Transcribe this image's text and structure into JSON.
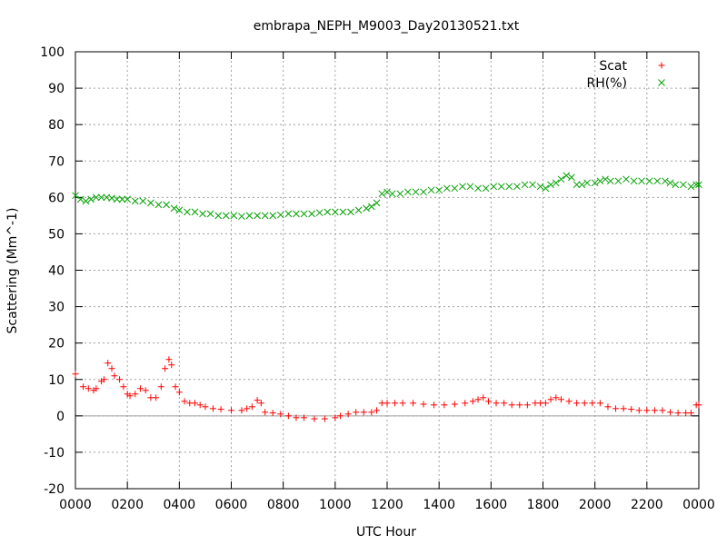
{
  "chart_data": {
    "type": "scatter",
    "title": "embrapa_NEPH_M9003_Day20130521.txt",
    "xlabel": "UTC Hour",
    "ylabel": "Scattering (Mm^-1)",
    "xlim": [
      0,
      24
    ],
    "ylim": [
      -20,
      100
    ],
    "x_ticks": [
      0,
      2,
      4,
      6,
      8,
      10,
      12,
      14,
      16,
      18,
      20,
      22,
      24
    ],
    "x_tick_labels": [
      "0000",
      "0200",
      "0400",
      "0600",
      "0800",
      "1000",
      "1200",
      "1400",
      "1600",
      "1800",
      "2000",
      "2200",
      "0000"
    ],
    "y_ticks": [
      -20,
      -10,
      0,
      10,
      20,
      30,
      40,
      50,
      60,
      70,
      80,
      90,
      100
    ],
    "grid": true,
    "legend_position": "top-right",
    "series": [
      {
        "name": "Scat",
        "color": "#ff0000",
        "marker": "plus",
        "points": [
          [
            0.0,
            11.5
          ],
          [
            0.3,
            8.0
          ],
          [
            0.5,
            7.5
          ],
          [
            0.7,
            7.0
          ],
          [
            0.8,
            7.5
          ],
          [
            1.0,
            9.5
          ],
          [
            1.1,
            10.0
          ],
          [
            1.25,
            14.5
          ],
          [
            1.4,
            13.0
          ],
          [
            1.5,
            11.0
          ],
          [
            1.7,
            10.0
          ],
          [
            1.85,
            8.0
          ],
          [
            2.0,
            6.0
          ],
          [
            2.1,
            5.5
          ],
          [
            2.3,
            6.0
          ],
          [
            2.5,
            7.5
          ],
          [
            2.7,
            7.0
          ],
          [
            2.9,
            5.0
          ],
          [
            3.1,
            5.0
          ],
          [
            3.3,
            8.0
          ],
          [
            3.45,
            13.0
          ],
          [
            3.6,
            15.5
          ],
          [
            3.7,
            14.0
          ],
          [
            3.85,
            8.0
          ],
          [
            4.0,
            6.5
          ],
          [
            4.2,
            4.0
          ],
          [
            4.4,
            3.5
          ],
          [
            4.6,
            3.5
          ],
          [
            4.8,
            3.0
          ],
          [
            5.0,
            2.5
          ],
          [
            5.3,
            2.0
          ],
          [
            5.6,
            1.8
          ],
          [
            6.0,
            1.5
          ],
          [
            6.4,
            1.5
          ],
          [
            6.6,
            2.0
          ],
          [
            6.8,
            2.5
          ],
          [
            7.0,
            4.3
          ],
          [
            7.15,
            3.5
          ],
          [
            7.3,
            1.0
          ],
          [
            7.6,
            0.8
          ],
          [
            7.9,
            0.5
          ],
          [
            8.2,
            0.0
          ],
          [
            8.5,
            -0.5
          ],
          [
            8.8,
            -0.5
          ],
          [
            9.2,
            -0.8
          ],
          [
            9.6,
            -0.8
          ],
          [
            10.0,
            -0.5
          ],
          [
            10.2,
            0.0
          ],
          [
            10.5,
            0.5
          ],
          [
            10.8,
            1.0
          ],
          [
            11.1,
            1.0
          ],
          [
            11.4,
            1.0
          ],
          [
            11.6,
            1.5
          ],
          [
            11.8,
            3.5
          ],
          [
            12.0,
            3.5
          ],
          [
            12.3,
            3.5
          ],
          [
            12.6,
            3.5
          ],
          [
            13.0,
            3.5
          ],
          [
            13.4,
            3.2
          ],
          [
            13.8,
            3.0
          ],
          [
            14.2,
            3.0
          ],
          [
            14.6,
            3.2
          ],
          [
            15.0,
            3.5
          ],
          [
            15.3,
            4.0
          ],
          [
            15.5,
            4.5
          ],
          [
            15.7,
            5.0
          ],
          [
            15.9,
            4.0
          ],
          [
            16.2,
            3.5
          ],
          [
            16.5,
            3.5
          ],
          [
            16.8,
            3.0
          ],
          [
            17.1,
            3.0
          ],
          [
            17.4,
            3.0
          ],
          [
            17.7,
            3.5
          ],
          [
            17.9,
            3.5
          ],
          [
            18.1,
            3.5
          ],
          [
            18.3,
            4.5
          ],
          [
            18.5,
            5.0
          ],
          [
            18.7,
            4.5
          ],
          [
            19.0,
            4.0
          ],
          [
            19.3,
            3.5
          ],
          [
            19.6,
            3.5
          ],
          [
            19.9,
            3.5
          ],
          [
            20.2,
            3.5
          ],
          [
            20.5,
            2.5
          ],
          [
            20.8,
            2.0
          ],
          [
            21.1,
            2.0
          ],
          [
            21.4,
            1.8
          ],
          [
            21.7,
            1.5
          ],
          [
            22.0,
            1.5
          ],
          [
            22.3,
            1.5
          ],
          [
            22.6,
            1.5
          ],
          [
            22.9,
            1.0
          ],
          [
            23.2,
            0.8
          ],
          [
            23.5,
            0.8
          ],
          [
            23.7,
            0.8
          ],
          [
            23.9,
            3.0
          ],
          [
            24.0,
            3.0
          ]
        ]
      },
      {
        "name": "RH(%)",
        "color": "#00a000",
        "marker": "cross",
        "points": [
          [
            0.0,
            60.5
          ],
          [
            0.2,
            59.5
          ],
          [
            0.4,
            59.0
          ],
          [
            0.6,
            59.5
          ],
          [
            0.8,
            60.0
          ],
          [
            1.0,
            60.0
          ],
          [
            1.2,
            60.0
          ],
          [
            1.4,
            59.8
          ],
          [
            1.6,
            59.5
          ],
          [
            1.8,
            59.5
          ],
          [
            2.0,
            59.5
          ],
          [
            2.3,
            59.0
          ],
          [
            2.6,
            59.0
          ],
          [
            2.9,
            58.5
          ],
          [
            3.2,
            58.0
          ],
          [
            3.5,
            58.0
          ],
          [
            3.8,
            57.0
          ],
          [
            4.0,
            56.5
          ],
          [
            4.3,
            56.0
          ],
          [
            4.6,
            56.0
          ],
          [
            4.9,
            55.5
          ],
          [
            5.2,
            55.5
          ],
          [
            5.5,
            55.0
          ],
          [
            5.8,
            55.0
          ],
          [
            6.1,
            55.0
          ],
          [
            6.4,
            54.8
          ],
          [
            6.7,
            55.0
          ],
          [
            7.0,
            55.0
          ],
          [
            7.3,
            55.0
          ],
          [
            7.6,
            55.0
          ],
          [
            7.9,
            55.2
          ],
          [
            8.2,
            55.5
          ],
          [
            8.5,
            55.5
          ],
          [
            8.8,
            55.5
          ],
          [
            9.1,
            55.5
          ],
          [
            9.4,
            55.8
          ],
          [
            9.7,
            56.0
          ],
          [
            10.0,
            56.0
          ],
          [
            10.3,
            56.0
          ],
          [
            10.6,
            56.0
          ],
          [
            10.9,
            56.5
          ],
          [
            11.2,
            57.0
          ],
          [
            11.4,
            57.5
          ],
          [
            11.6,
            58.5
          ],
          [
            11.8,
            61.0
          ],
          [
            12.0,
            61.5
          ],
          [
            12.2,
            61.0
          ],
          [
            12.5,
            61.0
          ],
          [
            12.8,
            61.5
          ],
          [
            13.1,
            61.5
          ],
          [
            13.4,
            61.5
          ],
          [
            13.7,
            62.0
          ],
          [
            14.0,
            62.0
          ],
          [
            14.3,
            62.5
          ],
          [
            14.6,
            62.5
          ],
          [
            14.9,
            63.0
          ],
          [
            15.2,
            63.0
          ],
          [
            15.5,
            62.5
          ],
          [
            15.8,
            62.5
          ],
          [
            16.1,
            63.0
          ],
          [
            16.4,
            63.0
          ],
          [
            16.7,
            63.0
          ],
          [
            17.0,
            63.0
          ],
          [
            17.3,
            63.5
          ],
          [
            17.6,
            63.5
          ],
          [
            17.9,
            63.0
          ],
          [
            18.1,
            62.5
          ],
          [
            18.3,
            63.5
          ],
          [
            18.5,
            64.0
          ],
          [
            18.7,
            65.0
          ],
          [
            18.9,
            66.0
          ],
          [
            19.1,
            65.5
          ],
          [
            19.3,
            63.5
          ],
          [
            19.5,
            63.5
          ],
          [
            19.7,
            64.0
          ],
          [
            20.0,
            64.0
          ],
          [
            20.2,
            64.5
          ],
          [
            20.4,
            65.0
          ],
          [
            20.6,
            64.5
          ],
          [
            20.9,
            64.5
          ],
          [
            21.2,
            65.0
          ],
          [
            21.5,
            64.5
          ],
          [
            21.8,
            64.5
          ],
          [
            22.1,
            64.5
          ],
          [
            22.4,
            64.5
          ],
          [
            22.7,
            64.5
          ],
          [
            22.9,
            64.0
          ],
          [
            23.1,
            63.5
          ],
          [
            23.4,
            63.5
          ],
          [
            23.7,
            63.0
          ],
          [
            23.9,
            63.5
          ],
          [
            24.0,
            63.5
          ]
        ]
      }
    ]
  }
}
